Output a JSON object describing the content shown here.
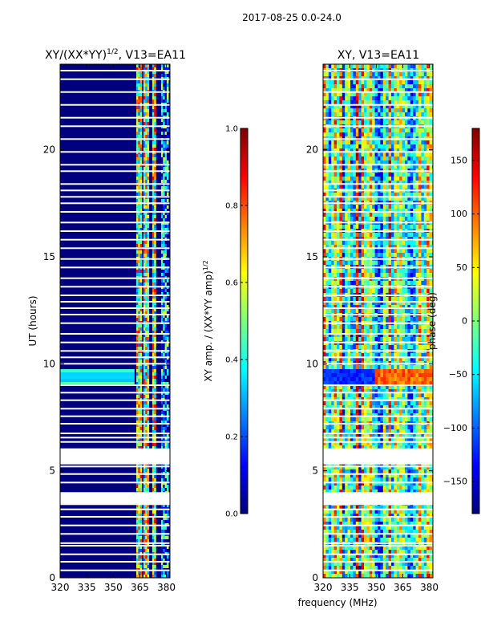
{
  "figure": {
    "suptitle": "2017-08-25 0.0-24.0",
    "xlabel": "frequency (MHz)"
  },
  "colormap": {
    "stops": [
      "#00007f",
      "#0000ff",
      "#007fff",
      "#00ffff",
      "#7fff7f",
      "#ffff00",
      "#ff7f00",
      "#ff0000",
      "#7f0000"
    ],
    "gap_color": "#ffffff"
  },
  "chart_data": [
    {
      "type": "heatmap",
      "title": "XY/(XX*YY)^{1/2}, V13=EA11",
      "title_main": "XY/(XX*YY)",
      "title_sup": "1/2",
      "title_rest": ", V13=EA11",
      "xlabel": "",
      "ylabel": "UT (hours)",
      "xlim": [
        320,
        382
      ],
      "ylim": [
        0,
        24
      ],
      "xticks": [
        320,
        335,
        350,
        365,
        380
      ],
      "yticks": [
        0,
        5,
        10,
        15,
        20
      ],
      "bright_channels_mhz": [
        [
          363,
          366
        ],
        [
          367,
          370
        ],
        [
          372,
          374
        ],
        [
          377,
          381
        ]
      ],
      "colorbar": {
        "label": "XY amp. / (XX*YY amp)^{1/2}",
        "label_main": "XY amp. / (XX*YY amp)",
        "label_sup": "1/2",
        "range": [
          0.0,
          1.0
        ],
        "ticks": [
          "0.0",
          "0.2",
          "0.4",
          "0.6",
          "0.8",
          "1.0"
        ]
      }
    },
    {
      "type": "heatmap",
      "title": "XY, V13=EA11",
      "xlabel": "",
      "ylabel": "",
      "xlim": [
        320,
        382
      ],
      "ylim": [
        0,
        24
      ],
      "xticks": [
        320,
        335,
        350,
        365,
        380
      ],
      "yticks": [
        0,
        5,
        10,
        15,
        20
      ],
      "colorbar": {
        "label": "phase (deg)",
        "range": [
          -180,
          180
        ],
        "ticks": [
          "−150",
          "−100",
          "−50",
          "0",
          "50",
          "100",
          "150"
        ]
      }
    }
  ],
  "gap_hours": [
    0.35,
    0.75,
    1.1,
    1.5,
    1.62,
    2.05,
    2.45,
    2.85,
    3.2,
    3.45,
    3.55,
    3.65,
    3.75,
    3.85,
    3.95,
    4.45,
    4.85,
    5.2,
    6.0,
    6.35,
    6.55,
    6.75,
    7.2,
    7.55,
    7.9,
    8.3,
    8.65,
    9.0,
    10.0,
    10.3,
    10.6,
    11.0,
    11.4,
    11.9,
    12.3,
    12.6,
    12.9,
    13.2,
    13.6,
    14.0,
    14.5,
    14.9,
    15.4,
    15.8,
    16.2,
    16.6,
    17.1,
    17.5,
    17.8,
    18.1,
    18.4,
    19.0,
    19.3,
    19.9,
    20.5,
    21.1,
    21.5,
    22.1,
    22.7,
    23.3,
    23.7
  ],
  "gap_bands": [
    [
      3.4,
      4.0
    ],
    [
      5.3,
      6.05
    ]
  ]
}
